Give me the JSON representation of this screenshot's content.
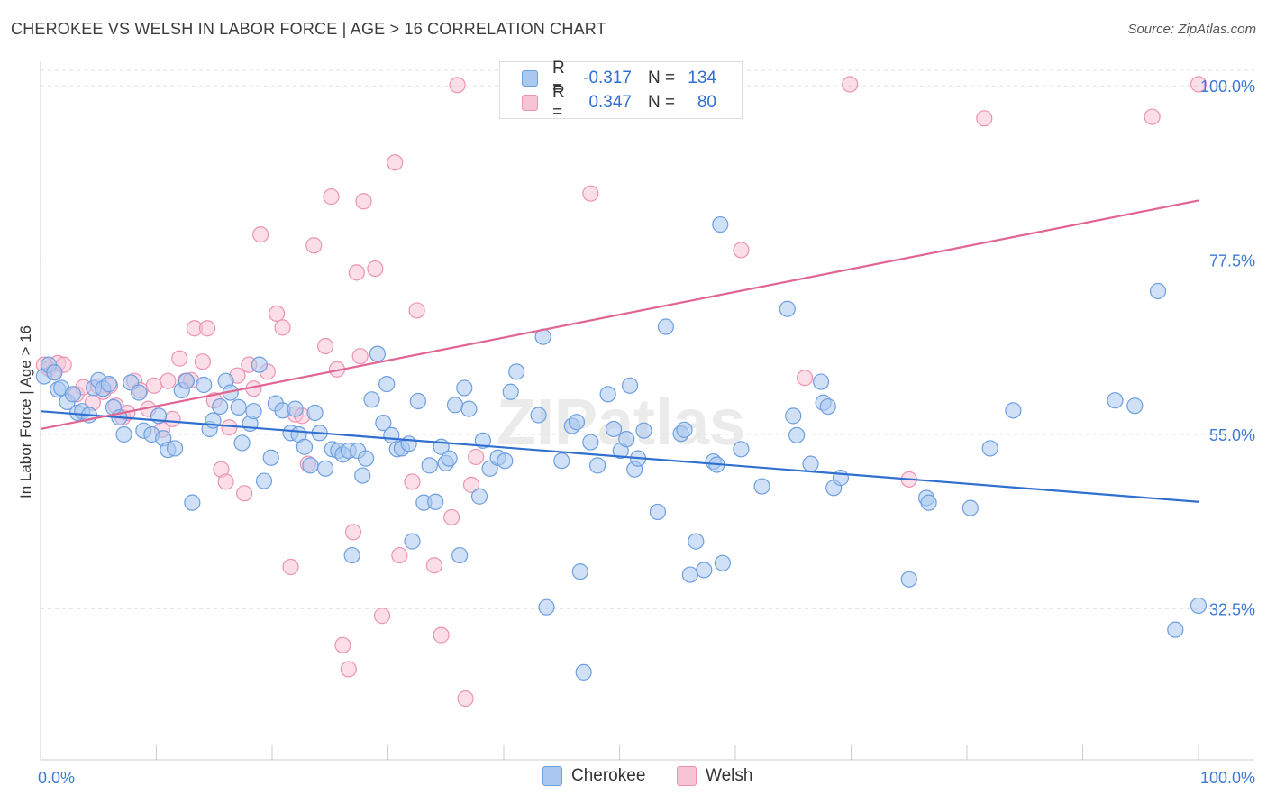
{
  "title": "CHEROKEE VS WELSH IN LABOR FORCE | AGE > 16 CORRELATION CHART",
  "source": "Source: ZipAtlas.com",
  "watermark": "ZIPatlas",
  "colors": {
    "cherokee_fill": "#aac8f0",
    "cherokee_stroke": "#6d9fe0",
    "cherokee_line": "#2f6fd0",
    "welsh_fill": "#f8c3d5",
    "welsh_stroke": "#ec93b3",
    "welsh_line": "#e06592",
    "grid": "#e2e2e2",
    "tick_label": "#3d7ad6"
  },
  "legend": {
    "rows": [
      {
        "r_label": "R =",
        "r_value": "-0.317",
        "n_label": "N =",
        "n_value": "134"
      },
      {
        "r_label": "R =",
        "r_value": "0.347",
        "n_label": "N =",
        "n_value": "80"
      }
    ],
    "bottom": [
      "Cherokee",
      "Welsh"
    ]
  },
  "chart_data": {
    "type": "scatter",
    "title": "CHEROKEE VS WELSH IN LABOR FORCE | AGE > 16 CORRELATION CHART",
    "xlabel": "",
    "ylabel": "In Labor Force | Age > 16",
    "xlim": [
      0,
      100
    ],
    "ylim": [
      13,
      102
    ],
    "x_tick_labels": [
      "0.0%",
      "100.0%"
    ],
    "y_ticks": [
      100.0,
      77.5,
      55.0,
      32.5
    ],
    "y_tick_labels": [
      "100.0%",
      "77.5%",
      "55.0%",
      "32.5%"
    ],
    "grid": true,
    "legend_position": "top-center",
    "series": [
      {
        "name": "Cherokee",
        "r": -0.317,
        "n": 134,
        "trend": {
          "x": [
            0,
            100
          ],
          "y": [
            58.0,
            46.3
          ]
        },
        "points": [
          [
            0.3,
            62.5
          ],
          [
            0.7,
            64
          ],
          [
            1.2,
            63
          ],
          [
            1.5,
            60.8
          ],
          [
            1.8,
            61
          ],
          [
            2.3,
            59.2
          ],
          [
            2.8,
            60.2
          ],
          [
            3.2,
            57.8
          ],
          [
            3.6,
            58
          ],
          [
            4.2,
            57.5
          ],
          [
            4.6,
            61
          ],
          [
            5.0,
            62
          ],
          [
            5.4,
            60.9
          ],
          [
            5.9,
            61.5
          ],
          [
            6.3,
            58.5
          ],
          [
            6.8,
            57.2
          ],
          [
            7.2,
            55
          ],
          [
            7.8,
            61.7
          ],
          [
            8.5,
            60.4
          ],
          [
            8.9,
            55.5
          ],
          [
            9.6,
            55
          ],
          [
            10.2,
            57.4
          ],
          [
            10.6,
            54.5
          ],
          [
            11.0,
            53
          ],
          [
            11.6,
            53.2
          ],
          [
            12.2,
            60.7
          ],
          [
            12.6,
            61.9
          ],
          [
            13.1,
            46.2
          ],
          [
            14.1,
            61.4
          ],
          [
            14.6,
            55.7
          ],
          [
            14.9,
            56.8
          ],
          [
            15.5,
            58.6
          ],
          [
            16.0,
            61.9
          ],
          [
            16.4,
            60.4
          ],
          [
            17.1,
            58.5
          ],
          [
            17.4,
            53.9
          ],
          [
            18.1,
            56.4
          ],
          [
            18.4,
            58
          ],
          [
            18.9,
            64
          ],
          [
            19.3,
            49
          ],
          [
            19.9,
            52
          ],
          [
            20.3,
            59
          ],
          [
            20.9,
            58.1
          ],
          [
            21.6,
            55.2
          ],
          [
            22.0,
            58.3
          ],
          [
            22.3,
            55
          ],
          [
            22.8,
            53.4
          ],
          [
            23.3,
            51
          ],
          [
            23.7,
            57.8
          ],
          [
            24.1,
            55.2
          ],
          [
            24.6,
            50.6
          ],
          [
            25.2,
            53.1
          ],
          [
            25.7,
            52.9
          ],
          [
            26.1,
            52.4
          ],
          [
            26.6,
            52.9
          ],
          [
            26.9,
            39.4
          ],
          [
            27.4,
            52.9
          ],
          [
            27.8,
            49.7
          ],
          [
            28.1,
            51.9
          ],
          [
            28.6,
            59.5
          ],
          [
            29.1,
            65.4
          ],
          [
            29.6,
            56.5
          ],
          [
            29.9,
            61.5
          ],
          [
            30.3,
            54.9
          ],
          [
            30.8,
            53.1
          ],
          [
            31.2,
            53.2
          ],
          [
            31.8,
            53.8
          ],
          [
            32.1,
            41.2
          ],
          [
            32.6,
            59.3
          ],
          [
            33.1,
            46.2
          ],
          [
            33.6,
            51
          ],
          [
            34.1,
            46.3
          ],
          [
            34.6,
            53.4
          ],
          [
            35.0,
            51.3
          ],
          [
            35.3,
            51.9
          ],
          [
            35.8,
            58.8
          ],
          [
            36.2,
            39.4
          ],
          [
            36.6,
            61
          ],
          [
            37.0,
            58.3
          ],
          [
            37.9,
            47
          ],
          [
            38.2,
            54.2
          ],
          [
            38.8,
            50.6
          ],
          [
            39.5,
            52
          ],
          [
            40.1,
            51.6
          ],
          [
            40.6,
            60.5
          ],
          [
            41.1,
            63.1
          ],
          [
            43.0,
            57.5
          ],
          [
            43.4,
            67.6
          ],
          [
            43.7,
            32.7
          ],
          [
            45.0,
            51.6
          ],
          [
            45.9,
            56.1
          ],
          [
            46.3,
            56.6
          ],
          [
            46.6,
            37.3
          ],
          [
            46.9,
            24.3
          ],
          [
            47.5,
            54
          ],
          [
            48.1,
            51
          ],
          [
            49.0,
            60.2
          ],
          [
            49.5,
            55.7
          ],
          [
            50.1,
            52.9
          ],
          [
            50.6,
            54.4
          ],
          [
            50.9,
            61.3
          ],
          [
            51.3,
            50.5
          ],
          [
            51.6,
            51.9
          ],
          [
            52.1,
            55.5
          ],
          [
            53.3,
            45
          ],
          [
            54.0,
            68.9
          ],
          [
            55.3,
            55.1
          ],
          [
            55.6,
            55.6
          ],
          [
            56.1,
            36.9
          ],
          [
            56.6,
            41.2
          ],
          [
            57.3,
            37.5
          ],
          [
            58.1,
            51.5
          ],
          [
            58.4,
            51.1
          ],
          [
            58.7,
            82.1
          ],
          [
            58.9,
            38.4
          ],
          [
            60.5,
            53.1
          ],
          [
            62.3,
            48.3
          ],
          [
            64.5,
            71.2
          ],
          [
            65.0,
            57.4
          ],
          [
            65.3,
            54.9
          ],
          [
            66.5,
            51.2
          ],
          [
            67.4,
            61.8
          ],
          [
            67.6,
            59.1
          ],
          [
            68.0,
            58.6
          ],
          [
            68.5,
            48.1
          ],
          [
            69.1,
            49.4
          ],
          [
            75.0,
            36.3
          ],
          [
            76.5,
            46.8
          ],
          [
            76.7,
            46.2
          ],
          [
            80.3,
            45.5
          ],
          [
            82.0,
            53.2
          ],
          [
            84.0,
            58.1
          ],
          [
            92.8,
            59.4
          ],
          [
            94.5,
            58.7
          ],
          [
            96.5,
            73.5
          ],
          [
            100.0,
            32.9
          ],
          [
            98.0,
            29.8
          ]
        ]
      },
      {
        "name": "Welsh",
        "r": 0.347,
        "n": 80,
        "trend": {
          "x": [
            0,
            100
          ],
          "y": [
            55.7,
            85.2
          ]
        },
        "points": [
          [
            0.3,
            64
          ],
          [
            0.7,
            63.5
          ],
          [
            1.1,
            63.1
          ],
          [
            1.5,
            64.2
          ],
          [
            2.0,
            64
          ],
          [
            3.1,
            60.2
          ],
          [
            3.7,
            61.1
          ],
          [
            4.5,
            59.1
          ],
          [
            5.0,
            61.2
          ],
          [
            5.4,
            60.5
          ],
          [
            6.0,
            61.3
          ],
          [
            6.5,
            58.7
          ],
          [
            7.1,
            57.2
          ],
          [
            7.5,
            57.8
          ],
          [
            8.1,
            61.9
          ],
          [
            8.6,
            60.7
          ],
          [
            9.3,
            58.3
          ],
          [
            9.8,
            61.3
          ],
          [
            10.5,
            55.6
          ],
          [
            11.0,
            61.9
          ],
          [
            11.4,
            57
          ],
          [
            12.0,
            64.8
          ],
          [
            12.5,
            61.9
          ],
          [
            13.0,
            62
          ],
          [
            13.3,
            68.7
          ],
          [
            14.0,
            64.4
          ],
          [
            14.4,
            68.7
          ],
          [
            15.0,
            59.4
          ],
          [
            15.6,
            50.5
          ],
          [
            16.0,
            48.9
          ],
          [
            16.3,
            55.9
          ],
          [
            17.0,
            62.6
          ],
          [
            17.6,
            47.4
          ],
          [
            18.0,
            64
          ],
          [
            18.4,
            60.9
          ],
          [
            19.0,
            80.8
          ],
          [
            19.6,
            63.1
          ],
          [
            20.4,
            70.6
          ],
          [
            20.9,
            68.8
          ],
          [
            21.6,
            37.9
          ],
          [
            22.0,
            57.6
          ],
          [
            22.6,
            57.4
          ],
          [
            23.1,
            51.2
          ],
          [
            23.6,
            79.4
          ],
          [
            24.6,
            66.4
          ],
          [
            25.1,
            85.7
          ],
          [
            25.6,
            63.4
          ],
          [
            26.1,
            27.8
          ],
          [
            26.6,
            24.7
          ],
          [
            27.0,
            42.4
          ],
          [
            27.3,
            75.9
          ],
          [
            27.6,
            65.1
          ],
          [
            27.9,
            85.1
          ],
          [
            28.9,
            76.4
          ],
          [
            29.5,
            31.6
          ],
          [
            30.6,
            90.1
          ],
          [
            31.0,
            39.4
          ],
          [
            32.1,
            48.9
          ],
          [
            32.5,
            71
          ],
          [
            34.0,
            38.1
          ],
          [
            34.6,
            29.1
          ],
          [
            35.5,
            44.3
          ],
          [
            36.0,
            100.1
          ],
          [
            36.7,
            20.9
          ],
          [
            37.2,
            48.5
          ],
          [
            37.6,
            52.1
          ],
          [
            41.0,
            100.2
          ],
          [
            47.5,
            86.1
          ],
          [
            60.5,
            78.8
          ],
          [
            66.0,
            62.3
          ],
          [
            69.9,
            100.2
          ],
          [
            75.0,
            49.2
          ],
          [
            81.5,
            95.8
          ],
          [
            96.0,
            96
          ],
          [
            100.0,
            100.2
          ]
        ]
      }
    ]
  }
}
